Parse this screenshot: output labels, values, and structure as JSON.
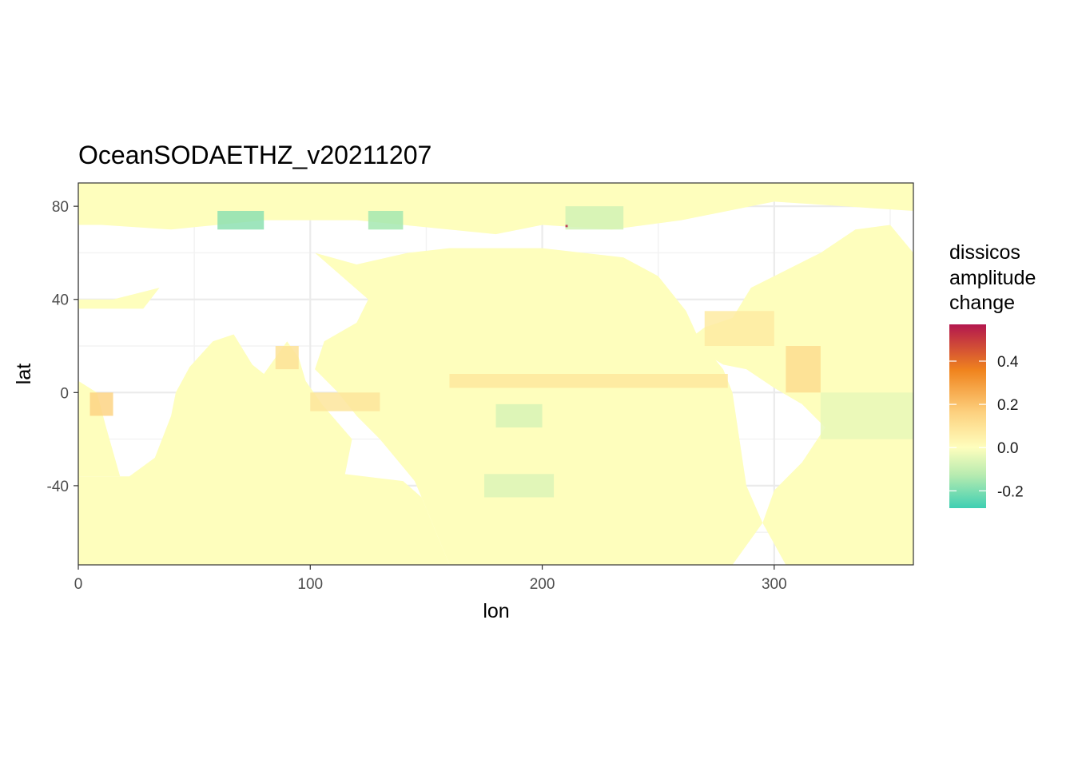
{
  "chart_data": {
    "type": "heatmap",
    "title": "OceanSODAETHZ_v20211207",
    "xlabel": "lon",
    "ylabel": "lat",
    "xlim": [
      0,
      360
    ],
    "ylim": [
      -74,
      90
    ],
    "x_ticks": [
      0,
      100,
      200,
      300
    ],
    "x_tick_labels": [
      "0",
      "100",
      "200",
      "300"
    ],
    "y_ticks": [
      -40,
      0,
      40,
      80
    ],
    "y_tick_labels": [
      "-40",
      "0",
      "40",
      "80"
    ],
    "grid": true,
    "legend": {
      "title_lines": [
        "dissicos",
        "amplitude",
        "change"
      ],
      "placement": "right",
      "range": [
        -0.28,
        0.57
      ],
      "breaks": [
        0.4,
        0.2,
        0.0,
        -0.2
      ],
      "break_labels": [
        "0.4",
        "0.2",
        "0.0",
        "-0.2"
      ],
      "colors": [
        "#3ecfb2",
        "#b7ebb0",
        "#fefebd",
        "#fdd17f",
        "#f0841e",
        "#b3174e"
      ]
    },
    "background_value": 0.0,
    "anomalies": [
      {
        "lon": [
          60,
          80
        ],
        "lat": [
          70,
          78
        ],
        "value": -0.18
      },
      {
        "lon": [
          125,
          140
        ],
        "lat": [
          70,
          78
        ],
        "value": -0.15
      },
      {
        "lon": [
          210,
          235
        ],
        "lat": [
          70,
          80
        ],
        "value": -0.08
      },
      {
        "lon": [
          180,
          200
        ],
        "lat": [
          -15,
          -5
        ],
        "value": -0.07
      },
      {
        "lon": [
          175,
          205
        ],
        "lat": [
          -45,
          -35
        ],
        "value": -0.06
      },
      {
        "lon": [
          160,
          280
        ],
        "lat": [
          2,
          8
        ],
        "value": 0.08
      },
      {
        "lon": [
          5,
          15
        ],
        "lat": [
          -10,
          0
        ],
        "value": 0.15
      },
      {
        "lon": [
          305,
          320
        ],
        "lat": [
          0,
          20
        ],
        "value": 0.12
      },
      {
        "lon": [
          270,
          300
        ],
        "lat": [
          20,
          35
        ],
        "value": 0.07
      },
      {
        "lon": [
          85,
          95
        ],
        "lat": [
          10,
          20
        ],
        "value": 0.1
      },
      {
        "lon": [
          100,
          130
        ],
        "lat": [
          -8,
          0
        ],
        "value": 0.09
      },
      {
        "lon": [
          210,
          211
        ],
        "lat": [
          71,
          72
        ],
        "value": 0.55
      },
      {
        "lon": [
          320,
          360
        ],
        "lat": [
          -20,
          0
        ],
        "value": -0.04
      }
    ]
  }
}
